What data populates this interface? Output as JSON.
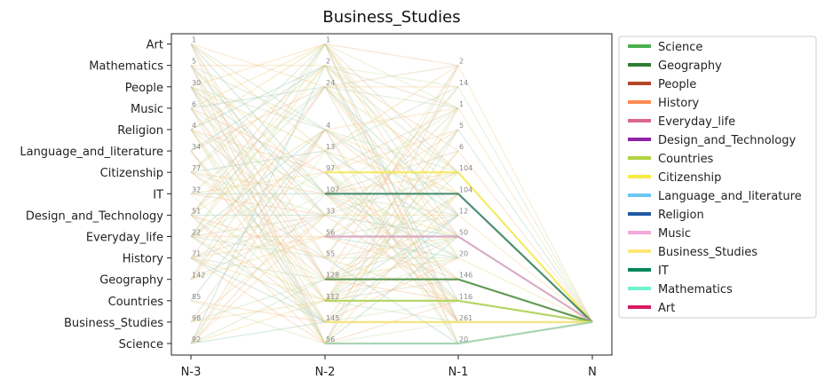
{
  "chart_data": {
    "type": "line",
    "title": "Business_Studies",
    "x_ticks": [
      "N-3",
      "N-2",
      "N-1",
      "N"
    ],
    "categories": [
      "Science",
      "Business_Studies",
      "Countries",
      "Geography",
      "History",
      "Everyday_life",
      "Design_and_Technology",
      "IT",
      "Citizenship",
      "Language_and_literature",
      "Religion",
      "Music",
      "People",
      "Mathematics",
      "Art"
    ],
    "counts": {
      "N-3": [
        [
          "Art",
          "1"
        ],
        [
          "Mathematics",
          "5"
        ],
        [
          "People",
          "30"
        ],
        [
          "Music",
          "6"
        ],
        [
          "Religion",
          "4"
        ],
        [
          "Language_and_literature",
          "34"
        ],
        [
          "Citizenship",
          "77"
        ],
        [
          "IT",
          "32"
        ],
        [
          "Design_and_Technology",
          "51"
        ],
        [
          "Everyday_life",
          "22"
        ],
        [
          "History",
          "71"
        ],
        [
          "Geography",
          "142"
        ],
        [
          "Countries",
          "85"
        ],
        [
          "Business_Studies",
          "98"
        ],
        [
          "Science",
          "92"
        ]
      ],
      "N-2": [
        [
          "Art",
          "1"
        ],
        [
          "Mathematics",
          "2"
        ],
        [
          "People",
          "24"
        ],
        [
          "Religion",
          "4"
        ],
        [
          "Language_and_literature",
          "13"
        ],
        [
          "Citizenship",
          "97"
        ],
        [
          "IT",
          "107"
        ],
        [
          "Design_and_Technology",
          "33"
        ],
        [
          "Everyday_life",
          "56"
        ],
        [
          "History",
          "55"
        ],
        [
          "Geography",
          "128"
        ],
        [
          "Countries",
          "112"
        ],
        [
          "Business_Studies",
          "145"
        ],
        [
          "Science",
          "56"
        ]
      ],
      "N-1": [
        [
          "Mathematics",
          "2"
        ],
        [
          "People",
          "14"
        ],
        [
          "Music",
          "1"
        ],
        [
          "Religion",
          "5"
        ],
        [
          "Language_and_literature",
          "6"
        ],
        [
          "Citizenship",
          "104"
        ],
        [
          "IT",
          "104"
        ],
        [
          "Design_and_Technology",
          "12"
        ],
        [
          "Everyday_life",
          "50"
        ],
        [
          "History",
          "20"
        ],
        [
          "Geography",
          "146"
        ],
        [
          "Countries",
          "116"
        ],
        [
          "Business_Studies",
          "261"
        ],
        [
          "Science",
          "20"
        ]
      ]
    },
    "highlighted_paths": [
      {
        "from": "Citizenship",
        "color": "#f5e84a"
      },
      {
        "from": "IT",
        "color": "#2e7d5b"
      },
      {
        "from": "Everyday_life",
        "color": "#d4a0c0"
      },
      {
        "from": "Geography",
        "color": "#4a8c3a"
      },
      {
        "from": "Countries",
        "color": "#a8d04a"
      },
      {
        "from": "Business_Studies",
        "color": "#f5e06a"
      },
      {
        "from": "Science",
        "color": "#9ccfa8"
      }
    ],
    "legend": {
      "position": "right",
      "entries": [
        {
          "name": "Science",
          "color": "#4caf50"
        },
        {
          "name": "Geography",
          "color": "#2e7d32"
        },
        {
          "name": "People",
          "color": "#b5452a"
        },
        {
          "name": "History",
          "color": "#ff8a50"
        },
        {
          "name": "Everyday_life",
          "color": "#de6593"
        },
        {
          "name": "Design_and_Technology",
          "color": "#8e24aa"
        },
        {
          "name": "Countries",
          "color": "#b0d444"
        },
        {
          "name": "Citizenship",
          "color": "#f7ea46"
        },
        {
          "name": "Language_and_literature",
          "color": "#6ec6f5"
        },
        {
          "name": "Religion",
          "color": "#1f5aa6"
        },
        {
          "name": "Music",
          "color": "#f6a8d8"
        },
        {
          "name": "Business_Studies",
          "color": "#fbe77a"
        },
        {
          "name": "IT",
          "color": "#00875a"
        },
        {
          "name": "Mathematics",
          "color": "#6ff5cf"
        },
        {
          "name": "Art",
          "color": "#d81b60"
        }
      ]
    }
  }
}
